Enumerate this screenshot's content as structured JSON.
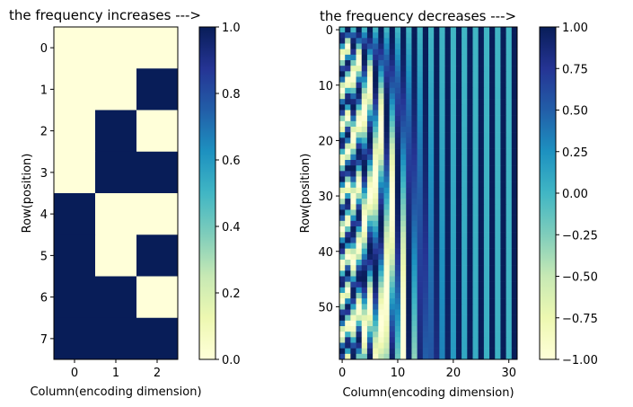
{
  "chart_data": [
    {
      "type": "heatmap",
      "title": "the frequency increases --->",
      "xlabel": "Column(encoding dimension)",
      "ylabel": "Row(position)",
      "x_ticks": [
        "0",
        "1",
        "2"
      ],
      "y_ticks": [
        "0",
        "1",
        "2",
        "3",
        "4",
        "5",
        "6",
        "7"
      ],
      "colormap": "YlGnBu",
      "colorbar": {
        "range": [
          0.0,
          1.0
        ],
        "ticks": [
          "0.0",
          "0.2",
          "0.4",
          "0.6",
          "0.8",
          "1.0"
        ]
      },
      "values": [
        [
          0,
          0,
          0
        ],
        [
          0,
          0,
          1
        ],
        [
          0,
          1,
          0
        ],
        [
          0,
          1,
          1
        ],
        [
          1,
          0,
          0
        ],
        [
          1,
          0,
          1
        ],
        [
          1,
          1,
          0
        ],
        [
          1,
          1,
          1
        ]
      ]
    },
    {
      "type": "heatmap",
      "title": "the frequency decreases --->",
      "xlabel": "Column(encoding dimension)",
      "ylabel": "Row(position)",
      "x_ticks": [
        "0",
        "10",
        "20",
        "30"
      ],
      "y_ticks": [
        "0",
        "10",
        "20",
        "30",
        "40",
        "50"
      ],
      "colormap": "YlGnBu",
      "n_rows": 60,
      "n_cols": 32,
      "encoding": "sinusoidal positional encoding (sin on even columns, cos on odd columns)",
      "colorbar": {
        "range": [
          -1.0,
          1.0
        ],
        "ticks": [
          "1.00",
          "0.75",
          "0.50",
          "0.25",
          "0.00",
          "−0.25",
          "−0.50",
          "−0.75",
          "−1.00"
        ]
      }
    }
  ]
}
